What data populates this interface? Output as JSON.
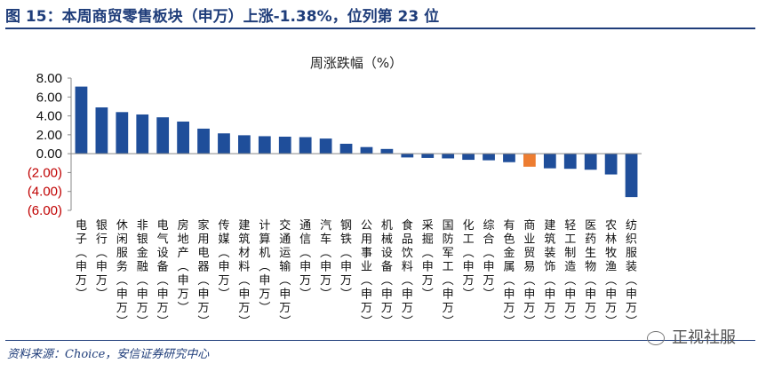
{
  "title": "图 15：本周商贸零售板块（申万）上涨-1.38%，位列第 23 位",
  "source": "资料来源：Choice，安信证券研究中心",
  "watermark": "正视社服",
  "colors": {
    "bar": "#1f4e9a",
    "highlight": "#ed7d31",
    "negative_label": "#c00000",
    "title": "#1f3d7a"
  },
  "chart_data": {
    "type": "bar",
    "title": "周涨跌幅（%）",
    "xlabel": "",
    "ylabel": "",
    "ylim": [
      -6,
      8
    ],
    "yticks": [
      8,
      6,
      4,
      2,
      0,
      -2,
      -4,
      -6
    ],
    "ytick_labels": [
      "8.00",
      "6.00",
      "4.00",
      "2.00",
      "0.00",
      "(2.00)",
      "(4.00)",
      "(6.00)"
    ],
    "categories": [
      "电子(申万)",
      "银行(申万)",
      "休闲服务(申万)",
      "非银金融(申万)",
      "电气设备(申万)",
      "房地产(申万)",
      "家用电器(申万)",
      "传媒(申万)",
      "建筑材料(申万)",
      "计算机(申万)",
      "交通运输(申万)",
      "通信(申万)",
      "汽车(申万)",
      "钢铁(申万)",
      "公用事业(申万)",
      "机械设备(申万)",
      "食品饮料(申万)",
      "采掘(申万)",
      "国防军工(申万)",
      "化工(申万)",
      "综合(申万)",
      "有色金属(申万)",
      "商业贸易(申万)",
      "建筑装饰(申万)",
      "轻工制造(申万)",
      "医药生物(申万)",
      "农林牧渔(申万)",
      "纺织服装(申万)"
    ],
    "values": [
      7.1,
      4.9,
      4.4,
      4.15,
      3.85,
      3.4,
      2.65,
      2.15,
      1.95,
      1.85,
      1.8,
      1.75,
      1.6,
      1.05,
      0.7,
      0.5,
      -0.4,
      -0.45,
      -0.5,
      -0.65,
      -0.7,
      -0.9,
      -1.38,
      -1.55,
      -1.6,
      -1.7,
      -2.2,
      -4.6
    ],
    "highlight": "商业贸易(申万)",
    "legend": "none",
    "grid": false
  }
}
